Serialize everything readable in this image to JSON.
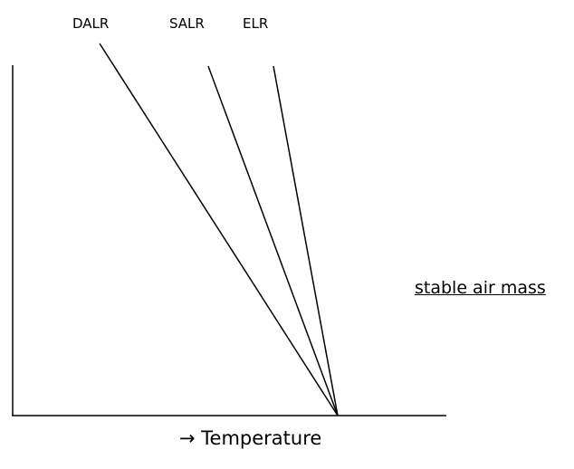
{
  "diagram": {
    "lines": {
      "dalr": "DALR",
      "salr": "SALR",
      "elr": "ELR"
    },
    "caption": "stable air mass",
    "x_axis_label": "→ Temperature"
  }
}
